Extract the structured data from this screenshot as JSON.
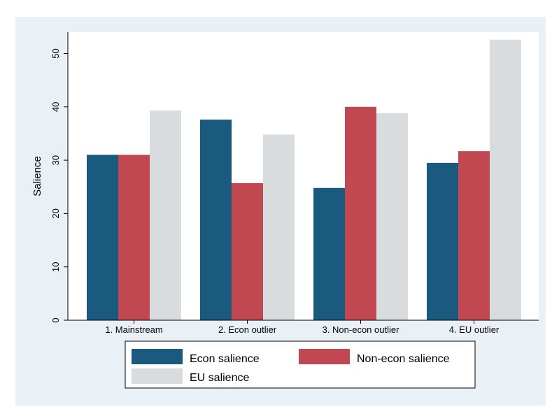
{
  "colors": {
    "background": "#e9f1f6",
    "plot_background": "#ffffff",
    "series": [
      "#1a5a7e",
      "#c14750",
      "#d9dcde"
    ]
  },
  "chart_data": {
    "type": "bar",
    "title": "",
    "xlabel": "",
    "ylabel": "Salience",
    "ylim": [
      0,
      54
    ],
    "yticks": [
      0,
      10,
      20,
      30,
      40,
      50
    ],
    "grid": false,
    "legend_position": "bottom",
    "categories": [
      "1. Mainstream",
      "2. Econ outlier",
      "3. Non-econ outlier",
      "4. EU outlier"
    ],
    "series": [
      {
        "name": "Econ salience",
        "values": [
          31,
          37.6,
          24.8,
          29.5
        ]
      },
      {
        "name": "Non-econ salience",
        "values": [
          31,
          25.7,
          40,
          31.7
        ]
      },
      {
        "name": "EU salience",
        "values": [
          39.3,
          34.8,
          38.8,
          52.6
        ]
      }
    ]
  }
}
